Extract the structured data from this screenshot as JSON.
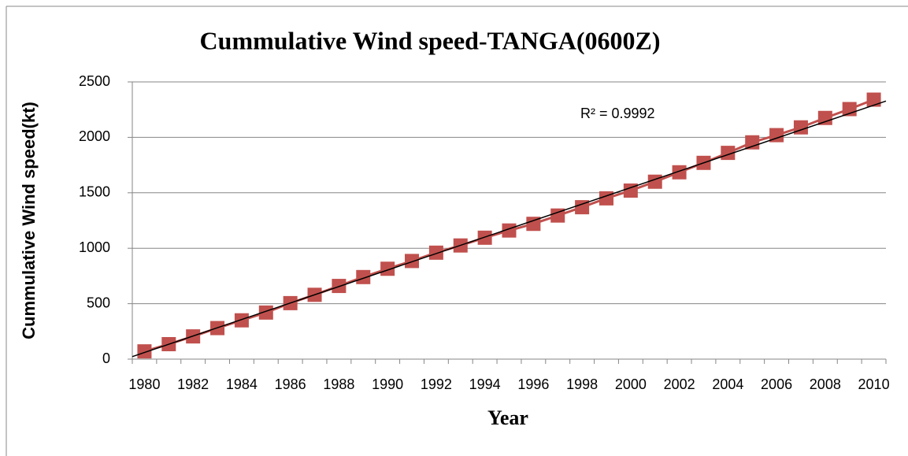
{
  "chart_data": {
    "type": "line",
    "title": "Cummulative Wind speed-TANGA(0600Z)",
    "x_label": "Year",
    "y_label": "Cummulative Wind speed(kt)",
    "annotation": "R² = 0.9992",
    "categories": [
      "1980",
      null,
      "1982",
      null,
      "1984",
      null,
      "1986",
      null,
      "1988",
      null,
      "1990",
      null,
      "1992",
      null,
      "1994",
      null,
      "1996",
      null,
      "1998",
      null,
      "2000",
      null,
      "2002",
      null,
      "2004",
      null,
      "2006",
      null,
      "2008",
      null,
      "2010"
    ],
    "series": [
      {
        "color": "#c0504d",
        "values": [
          70,
          135,
          205,
          280,
          350,
          420,
          505,
          580,
          660,
          740,
          815,
          885,
          960,
          1025,
          1095,
          1160,
          1220,
          1295,
          1370,
          1450,
          1520,
          1600,
          1685,
          1770,
          1860,
          1955,
          2020,
          2090,
          2175,
          2255,
          2340
        ]
      }
    ],
    "trendline": {
      "color": "#000000",
      "values": [
        60,
        2290
      ]
    },
    "ylim": [
      0,
      2500
    ],
    "yticks": [
      0,
      500,
      1000,
      1500,
      2000,
      2500
    ],
    "grid": true
  }
}
